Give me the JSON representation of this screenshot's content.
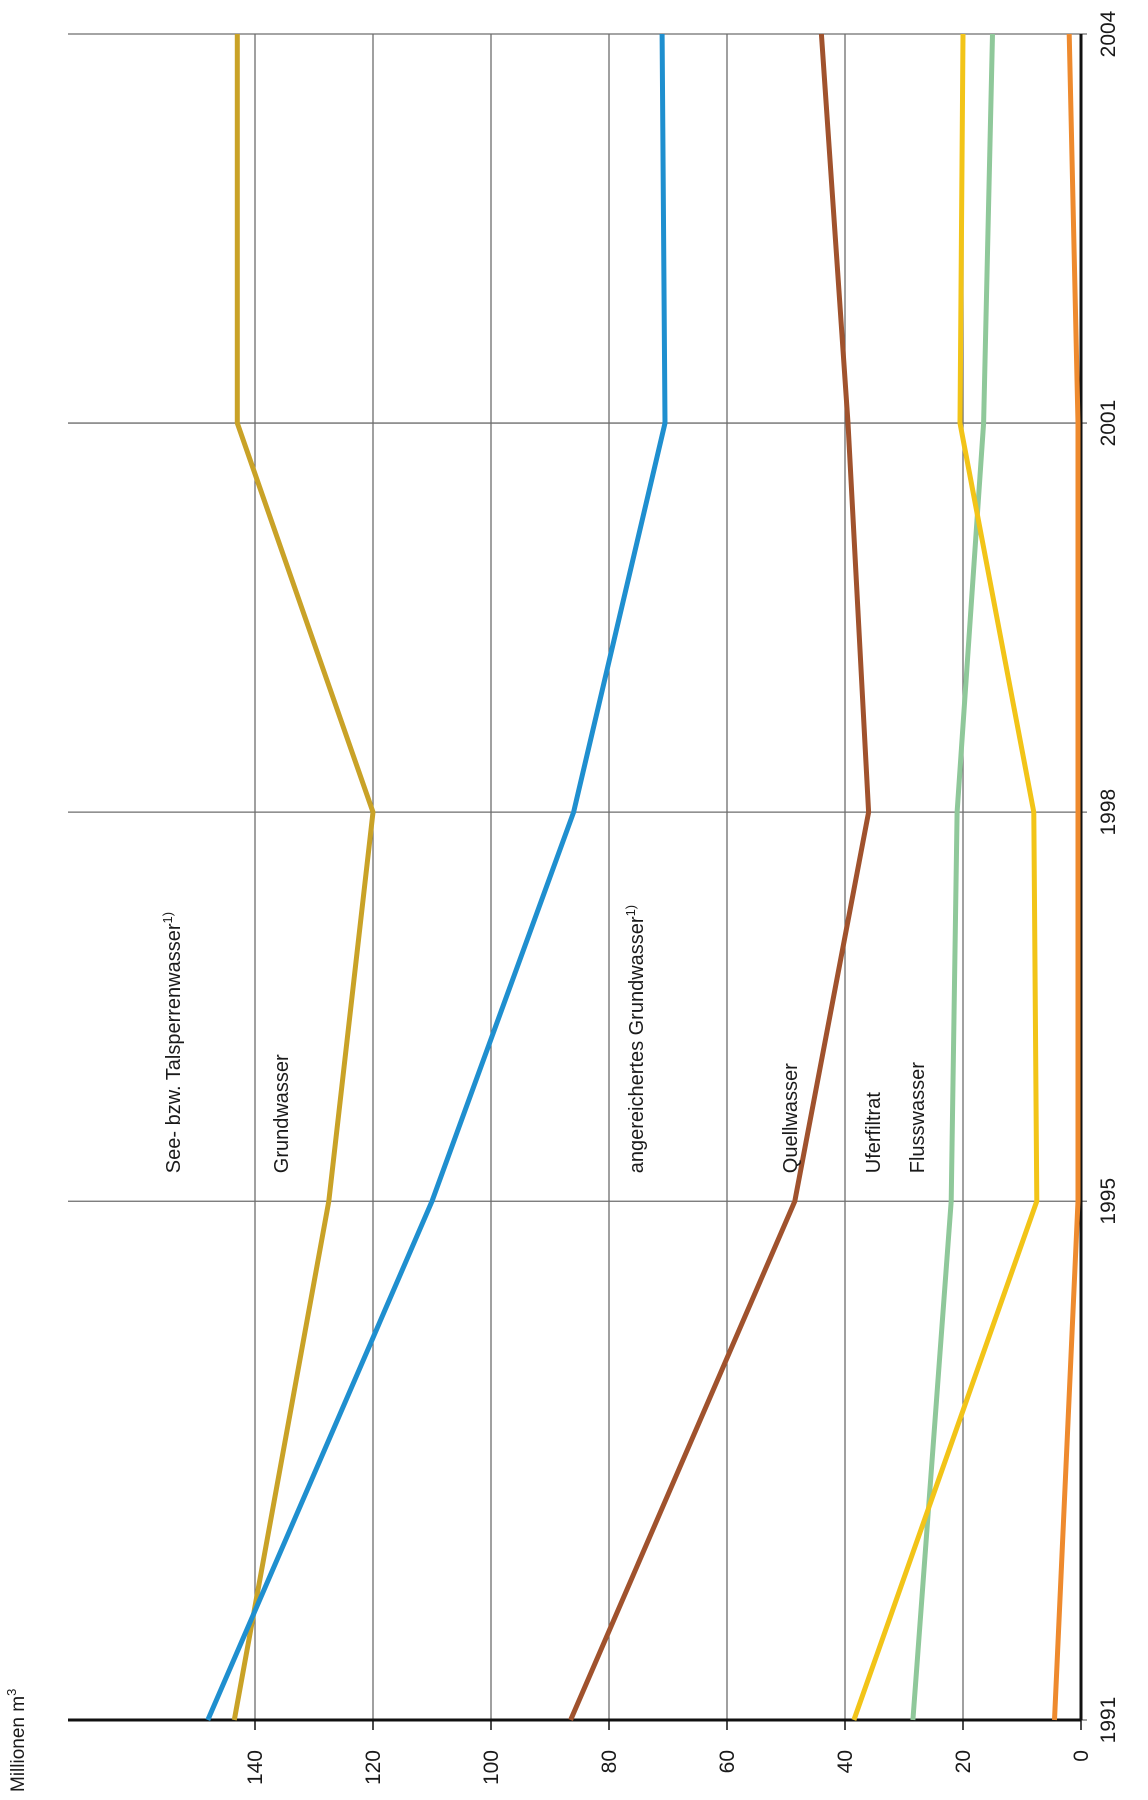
{
  "chart_data": {
    "type": "line",
    "orientation": "rotated-90-clockwise",
    "x": [
      1991,
      1995,
      1998,
      2001,
      2004
    ],
    "x_tick_labels": [
      "1991",
      "1995",
      "1998",
      "2001",
      "2004"
    ],
    "ylabel": "Millionen m",
    "ylabel_sup": "3",
    "ylim": [
      0,
      150
    ],
    "y_ticks": [
      0,
      20,
      40,
      60,
      80,
      100,
      120,
      140
    ],
    "y_tick_labels": [
      "0",
      "20",
      "40",
      "60",
      "80",
      "100",
      "120",
      "140"
    ],
    "grid": true,
    "legend": "inline labels",
    "series": [
      {
        "name": "See- bzw. Talsperrenwasser",
        "sup": "1)",
        "color": "#c9a227",
        "values": [
          143.5,
          127.5,
          120,
          143,
          143
        ]
      },
      {
        "name": "Grundwasser",
        "sup": "",
        "color": "#1f8fcf",
        "values": [
          148,
          110,
          86,
          70.5,
          71
        ]
      },
      {
        "name": "angereichertes Grundwasser",
        "sup": "1)",
        "color": "#a0522d",
        "values": [
          86.5,
          48.5,
          36,
          39.5,
          44
        ]
      },
      {
        "name": "Quellwasser",
        "sup": "",
        "color": "#8fc89a",
        "values": [
          28.5,
          22,
          21,
          16.5,
          15
        ]
      },
      {
        "name": "Uferfiltrat",
        "sup": "",
        "color": "#f2c418",
        "values": [
          38.5,
          7.5,
          8,
          20.5,
          20
        ]
      },
      {
        "name": "Flusswasser",
        "sup": "",
        "color": "#ee8a2e",
        "values": [
          4.5,
          0.5,
          0.5,
          0.5,
          2
        ]
      }
    ]
  }
}
